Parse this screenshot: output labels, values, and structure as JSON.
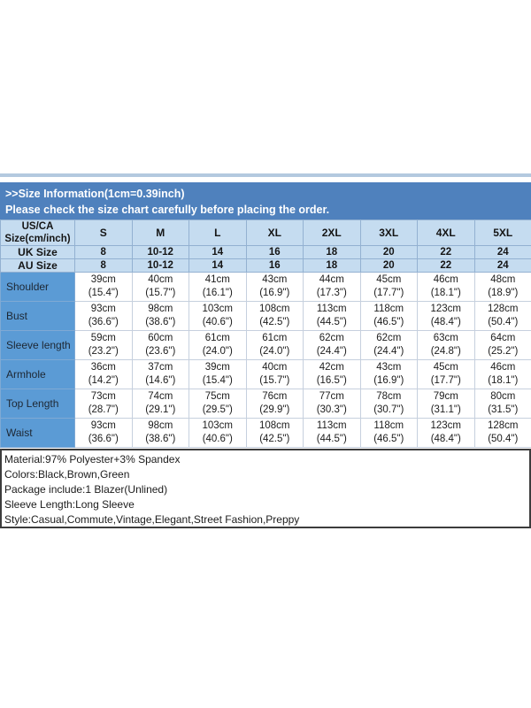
{
  "banner": {
    "line1": ">>Size Information(1cm=0.39inch)",
    "line2": "Please check the size chart carefully before placing the order."
  },
  "table": {
    "corner_label_lines": [
      "US/CA",
      "Size(cm/inch)"
    ],
    "size_columns": [
      "S",
      "M",
      "L",
      "XL",
      "2XL",
      "3XL",
      "4XL",
      "5XL"
    ],
    "uk_row": {
      "label": "UK Size",
      "values": [
        "8",
        "10-12",
        "14",
        "16",
        "18",
        "20",
        "22",
        "24"
      ]
    },
    "au_row": {
      "label": "AU Size",
      "values": [
        "8",
        "10-12",
        "14",
        "16",
        "18",
        "20",
        "22",
        "24"
      ]
    },
    "measurement_rows": [
      {
        "label": "Shoulder",
        "cm": [
          "39cm",
          "40cm",
          "41cm",
          "43cm",
          "44cm",
          "45cm",
          "46cm",
          "48cm"
        ],
        "inch": [
          "(15.4\")",
          "(15.7\")",
          "(16.1\")",
          "(16.9\")",
          "(17.3\")",
          "(17.7\")",
          "(18.1\")",
          "(18.9\")"
        ]
      },
      {
        "label": "Bust",
        "cm": [
          "93cm",
          "98cm",
          "103cm",
          "108cm",
          "113cm",
          "118cm",
          "123cm",
          "128cm"
        ],
        "inch": [
          "(36.6\")",
          "(38.6\")",
          "(40.6\")",
          "(42.5\")",
          "(44.5\")",
          "(46.5\")",
          "(48.4\")",
          "(50.4\")"
        ]
      },
      {
        "label": "Sleeve length",
        "cm": [
          "59cm",
          "60cm",
          "61cm",
          "61cm",
          "62cm",
          "62cm",
          "63cm",
          "64cm"
        ],
        "inch": [
          "(23.2\")",
          "(23.6\")",
          "(24.0\")",
          "(24.0\")",
          "(24.4\")",
          "(24.4\")",
          "(24.8\")",
          "(25.2\")"
        ]
      },
      {
        "label": "Armhole",
        "cm": [
          "36cm",
          "37cm",
          "39cm",
          "40cm",
          "42cm",
          "43cm",
          "45cm",
          "46cm"
        ],
        "inch": [
          "(14.2\")",
          "(14.6\")",
          "(15.4\")",
          "(15.7\")",
          "(16.5\")",
          "(16.9\")",
          "(17.7\")",
          "(18.1\")"
        ]
      },
      {
        "label": "Top Length",
        "cm": [
          "73cm",
          "74cm",
          "75cm",
          "76cm",
          "77cm",
          "78cm",
          "79cm",
          "80cm"
        ],
        "inch": [
          "(28.7\")",
          "(29.1\")",
          "(29.5\")",
          "(29.9\")",
          "(30.3\")",
          "(30.7\")",
          "(31.1\")",
          "(31.5\")"
        ]
      },
      {
        "label": "Waist",
        "cm": [
          "93cm",
          "98cm",
          "103cm",
          "108cm",
          "113cm",
          "118cm",
          "123cm",
          "128cm"
        ],
        "inch": [
          "(36.6\")",
          "(38.6\")",
          "(40.6\")",
          "(42.5\")",
          "(44.5\")",
          "(46.5\")",
          "(48.4\")",
          "(50.4\")"
        ]
      }
    ]
  },
  "details": {
    "lines": [
      "Material:97% Polyester+3% Spandex",
      "Colors:Black,Brown,Green",
      "Package include:1 Blazer(Unlined)",
      "Sleeve Length:Long Sleeve",
      "Style:Casual,Commute,Vintage,Elegant,Street Fashion,Preppy"
    ]
  },
  "colors": {
    "banner_bg": "#4f81bd",
    "top_strip": "#b3c9df",
    "header_cell_bg": "#c5dcf0",
    "label_cell_bg": "#5b9bd5",
    "header_grid_line": "#93b1d1",
    "body_grid_line": "#c6d0de",
    "info_border": "#3c3c3c",
    "banner_text": "#ffffff",
    "cell_text": "#1c1c1c"
  }
}
